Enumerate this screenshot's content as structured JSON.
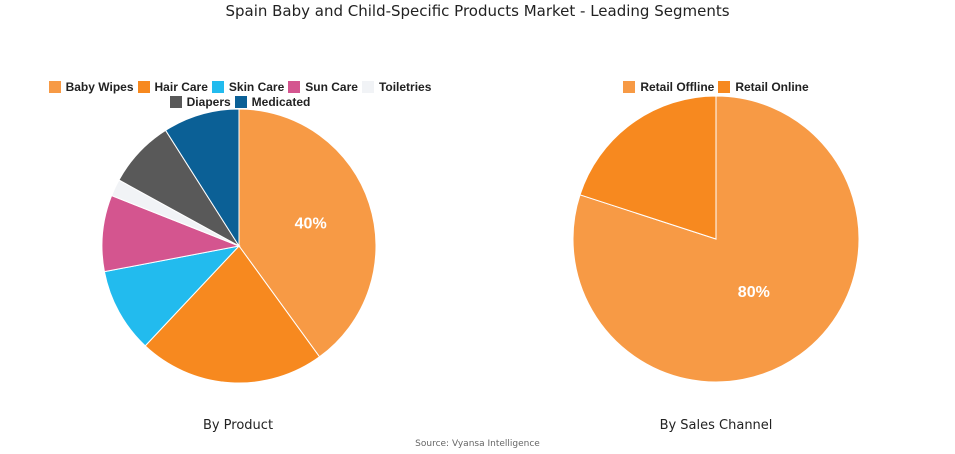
{
  "chart_data": [
    {
      "type": "pie",
      "title": "Spain Baby and Child-Specific Products Market - Leading Segments",
      "subtitle": "By Product",
      "categories": [
        "Baby Wipes",
        "Hair Care",
        "Skin Care",
        "Sun Care",
        "Toiletries",
        "Diapers",
        "Medicated"
      ],
      "values": [
        40,
        22,
        10,
        9,
        2,
        8,
        9
      ],
      "colors": [
        "#F79A45",
        "#F7891F",
        "#22BBEE",
        "#D4558F",
        "#F1F3F6",
        "#595959",
        "#0B6096"
      ],
      "data_labels": [
        "40%",
        "",
        "",
        "",
        "",
        "",
        ""
      ],
      "legend": "top"
    },
    {
      "type": "pie",
      "subtitle": "By Sales Channel",
      "categories": [
        "Retail Offline",
        "Retail Online"
      ],
      "values": [
        80,
        20
      ],
      "colors": [
        "#F79A45",
        "#F7891F"
      ],
      "data_labels": [
        "80%",
        ""
      ],
      "legend": "top"
    }
  ],
  "source": "Source: Vyansa Intelligence"
}
